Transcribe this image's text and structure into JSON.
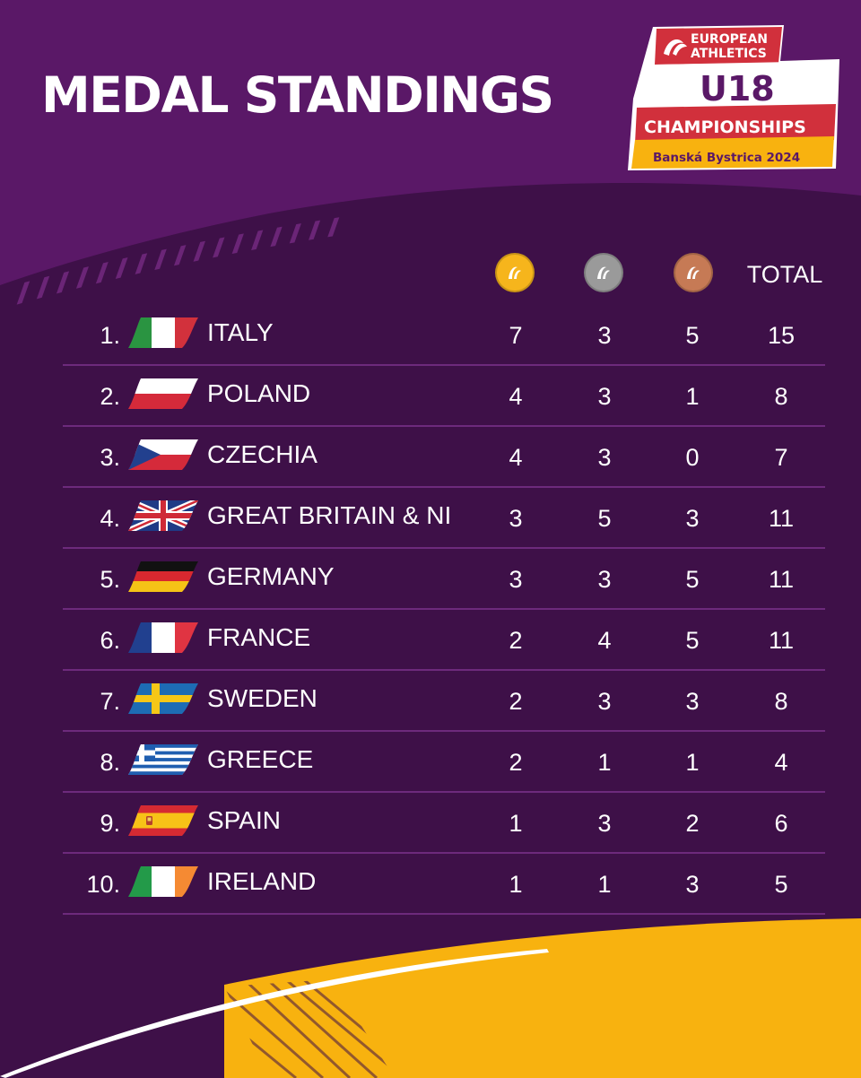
{
  "title": "MEDAL STANDINGS",
  "logo": {
    "line1": "EUROPEAN",
    "line2": "ATHLETICS",
    "line3": "U18",
    "line4": "CHAMPIONSHIPS",
    "line5": "Banská Bystrica 2024"
  },
  "header": {
    "gold_icon": "gold-medal-icon",
    "silver_icon": "silver-medal-icon",
    "bronze_icon": "bronze-medal-icon",
    "total_label": "TOTAL"
  },
  "colors": {
    "background": "#3e1048",
    "upper_band": "#5a1867",
    "accent_yellow": "#f8b20f",
    "row_divider": "#6d2a7c",
    "gold": "#f6b51c",
    "silver": "#9a9a9a",
    "bronze": "#c67a55",
    "logo_red": "#d1303c"
  },
  "rows": [
    {
      "rank": "1.",
      "country": "ITALY",
      "flag": "italy-flag",
      "gold": "7",
      "silver": "3",
      "bronze": "5",
      "total": "15"
    },
    {
      "rank": "2.",
      "country": "POLAND",
      "flag": "poland-flag",
      "gold": "4",
      "silver": "3",
      "bronze": "1",
      "total": "8"
    },
    {
      "rank": "3.",
      "country": "CZECHIA",
      "flag": "czechia-flag",
      "gold": "4",
      "silver": "3",
      "bronze": "0",
      "total": "7"
    },
    {
      "rank": "4.",
      "country": "GREAT BRITAIN & NI",
      "flag": "great-britain-flag",
      "gold": "3",
      "silver": "5",
      "bronze": "3",
      "total": "11"
    },
    {
      "rank": "5.",
      "country": "GERMANY",
      "flag": "germany-flag",
      "gold": "3",
      "silver": "3",
      "bronze": "5",
      "total": "11"
    },
    {
      "rank": "6.",
      "country": "FRANCE",
      "flag": "france-flag",
      "gold": "2",
      "silver": "4",
      "bronze": "5",
      "total": "11"
    },
    {
      "rank": "7.",
      "country": "SWEDEN",
      "flag": "sweden-flag",
      "gold": "2",
      "silver": "3",
      "bronze": "3",
      "total": "8"
    },
    {
      "rank": "8.",
      "country": "GREECE",
      "flag": "greece-flag",
      "gold": "2",
      "silver": "1",
      "bronze": "1",
      "total": "4"
    },
    {
      "rank": "9.",
      "country": "SPAIN",
      "flag": "spain-flag",
      "gold": "1",
      "silver": "3",
      "bronze": "2",
      "total": "6"
    },
    {
      "rank": "10.",
      "country": "IRELAND",
      "flag": "ireland-flag",
      "gold": "1",
      "silver": "1",
      "bronze": "3",
      "total": "5"
    }
  ]
}
